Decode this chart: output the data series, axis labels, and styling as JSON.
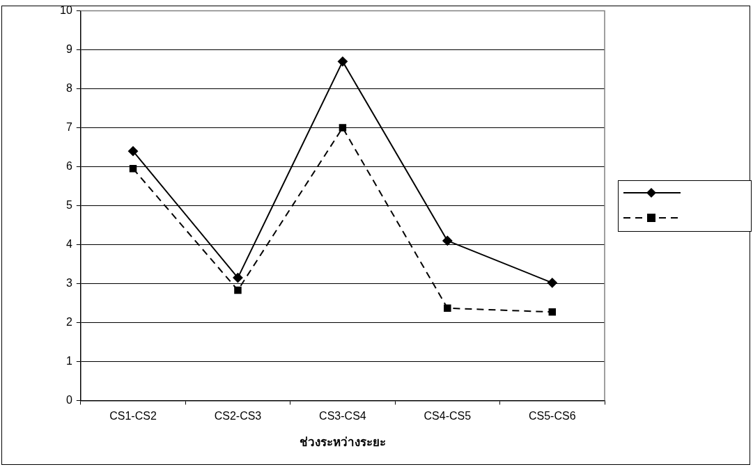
{
  "chart_data": {
    "type": "line",
    "xlabel": "ช่วงระหว่างระยะ",
    "categories": [
      "CS1-CS2",
      "CS2-CS3",
      "CS3-CS4",
      "CS4-CS5",
      "CS5-CS6"
    ],
    "series": [
      {
        "color": "#000000",
        "marker": "diamond",
        "line_style": "solid",
        "values": [
          6.4,
          3.15,
          8.7,
          4.1,
          3.02
        ]
      },
      {
        "color": "#000000",
        "marker": "square",
        "line_style": "dashed",
        "values": [
          5.95,
          2.83,
          7.0,
          2.37,
          2.27
        ]
      }
    ],
    "ylim": [
      0,
      10
    ],
    "yticks": [
      0,
      1,
      2,
      3,
      4,
      5,
      6,
      7,
      8,
      9,
      10
    ],
    "grid": "y"
  }
}
